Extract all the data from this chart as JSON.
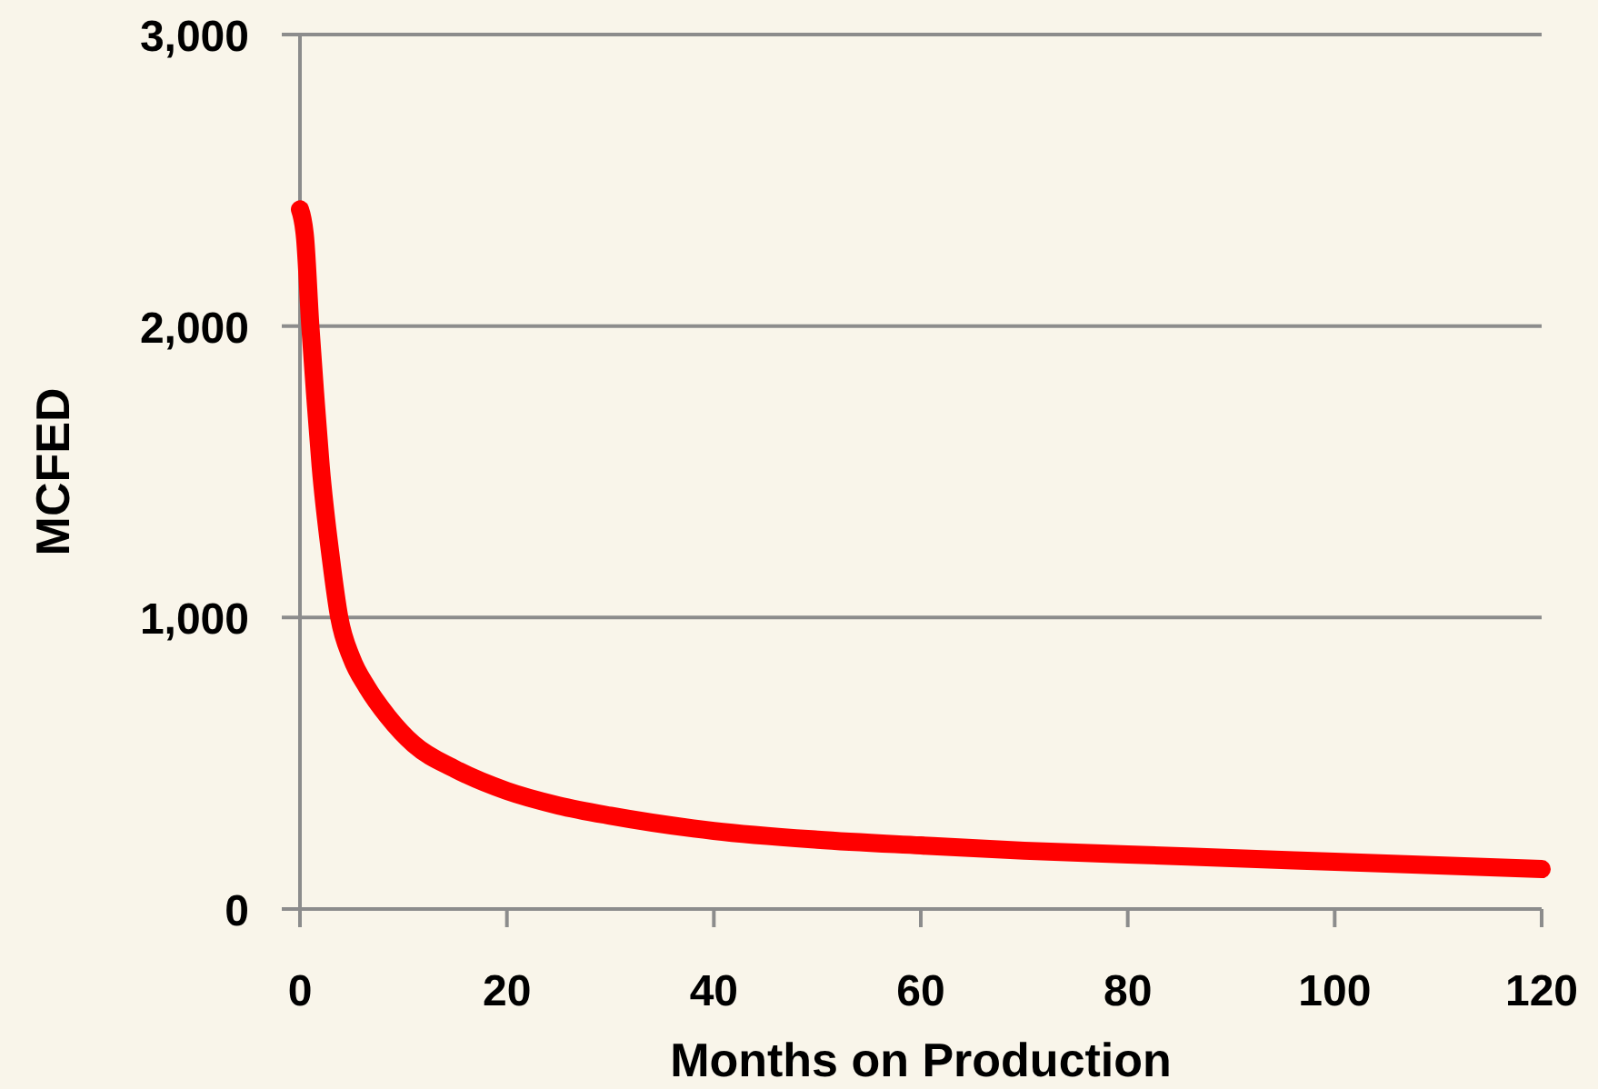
{
  "chart_data": {
    "type": "line",
    "xlabel": "Months on Production",
    "ylabel": "MCFED",
    "x": [
      0,
      0.5,
      1,
      1.5,
      2,
      3,
      3.8,
      5,
      6.5,
      8.5,
      11,
      15,
      20,
      25,
      30,
      40,
      50,
      60,
      70,
      80,
      90,
      100,
      110,
      120
    ],
    "series": [
      {
        "color": "#ff0000",
        "values": [
          2400,
          2300,
          2000,
          1750,
          1520,
          1200,
          1000,
          860,
          760,
          660,
          565,
          480,
          405,
          355,
          320,
          268,
          238,
          218,
          200,
          187,
          175,
          162,
          150,
          137
        ]
      }
    ],
    "xlim": [
      0,
      120
    ],
    "xticks": [
      0,
      20,
      40,
      60,
      80,
      100,
      120
    ],
    "ylim": [
      0,
      3000
    ],
    "yticks": [
      0,
      {
        "value": 1000,
        "label": "1,000"
      },
      {
        "value": 2000,
        "label": "2,000"
      },
      {
        "value": 3000,
        "label": "3,000"
      }
    ],
    "grid": "y",
    "marker": "none",
    "line_style": "solid"
  }
}
